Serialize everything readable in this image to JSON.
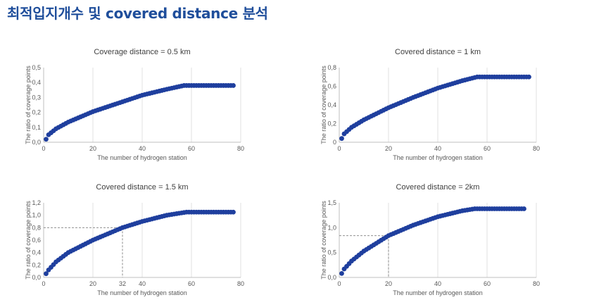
{
  "page": {
    "title": "최적입지개수 및 covered distance 분석"
  },
  "colors": {
    "title": "#1f4e9b",
    "series": "#1f3f9e",
    "axis": "#bfbfbf",
    "grid": "#d9d9d9",
    "guide": "#808080"
  },
  "chart_data": [
    {
      "type": "scatter",
      "title": "Coverage distance = 0.5 km",
      "xlabel": "The number of hydrogen station",
      "ylabel": "The ratio of coverage points",
      "xlim": [
        0,
        80
      ],
      "ylim": [
        0,
        0.5
      ],
      "x_ticks": [
        0,
        20,
        40,
        60,
        80
      ],
      "x_tick_labels": [
        "0",
        "20",
        "40",
        "60",
        "80"
      ],
      "y_ticks": [
        0,
        0.1,
        0.2,
        0.3,
        0.4,
        0.5
      ],
      "y_tick_labels": [
        "0,0",
        "0,1",
        "0,2",
        "0,3",
        "0,4",
        "0,5"
      ],
      "grid": "vertical",
      "x_range": [
        1,
        77
      ],
      "curve": [
        [
          1,
          0.02
        ],
        [
          2,
          0.05
        ],
        [
          5,
          0.09
        ],
        [
          10,
          0.135
        ],
        [
          20,
          0.205
        ],
        [
          30,
          0.26
        ],
        [
          40,
          0.315
        ],
        [
          50,
          0.355
        ],
        [
          57,
          0.38
        ],
        [
          77,
          0.38
        ]
      ],
      "guide": null
    },
    {
      "type": "scatter",
      "title": "Covered distance = 1 km",
      "xlabel": "The number of hydrogen station",
      "ylabel": "The ratio of coverage points",
      "xlim": [
        0,
        80
      ],
      "ylim": [
        0,
        0.8
      ],
      "x_ticks": [
        0,
        20,
        40,
        60,
        80
      ],
      "x_tick_labels": [
        "0",
        "20",
        "40",
        "60",
        "80"
      ],
      "y_ticks": [
        0,
        0.2,
        0.4,
        0.6,
        0.8
      ],
      "y_tick_labels": [
        "0",
        "0,2",
        "0,4",
        "0,6",
        "0,8"
      ],
      "grid": "vertical",
      "x_range": [
        1,
        77
      ],
      "curve": [
        [
          1,
          0.04
        ],
        [
          2,
          0.09
        ],
        [
          5,
          0.16
        ],
        [
          10,
          0.24
        ],
        [
          20,
          0.37
        ],
        [
          30,
          0.48
        ],
        [
          40,
          0.58
        ],
        [
          50,
          0.66
        ],
        [
          56,
          0.7
        ],
        [
          77,
          0.7
        ]
      ],
      "guide": null
    },
    {
      "type": "scatter",
      "title": "Covered distance = 1.5 km",
      "xlabel": "The number of hydrogen station",
      "ylabel": "The ratio of coverage points",
      "xlim": [
        0,
        80
      ],
      "ylim": [
        0,
        1.2
      ],
      "x_ticks": [
        0,
        20,
        40,
        60,
        80
      ],
      "x_tick_labels": [
        "0",
        "20",
        "40",
        "60",
        "80"
      ],
      "y_ticks": [
        0,
        0.2,
        0.4,
        0.6,
        0.8,
        1.0,
        1.2
      ],
      "y_tick_labels": [
        "0,0",
        "0,2",
        "0,4",
        "0,6",
        "0,8",
        "1,0",
        "1,2"
      ],
      "grid": "vertical",
      "x_range": [
        1,
        77
      ],
      "curve": [
        [
          1,
          0.06
        ],
        [
          2,
          0.12
        ],
        [
          5,
          0.25
        ],
        [
          10,
          0.4
        ],
        [
          20,
          0.6
        ],
        [
          32,
          0.8
        ],
        [
          40,
          0.9
        ],
        [
          50,
          1.0
        ],
        [
          58,
          1.05
        ],
        [
          77,
          1.05
        ]
      ],
      "guide": {
        "x": 32,
        "y": 0.8,
        "x_label": "32"
      }
    },
    {
      "type": "scatter",
      "title": "Covered distance = 2km",
      "xlabel": "The number of hydrogen station",
      "ylabel": "The ratio of coverage points",
      "xlim": [
        0,
        80
      ],
      "ylim": [
        0,
        1.5
      ],
      "x_ticks": [
        0,
        20,
        40,
        60,
        80
      ],
      "x_tick_labels": [
        "0",
        "20",
        "40",
        "60",
        "80"
      ],
      "y_ticks": [
        0,
        0.5,
        1.0,
        1.5
      ],
      "y_tick_labels": [
        "0,0",
        "0,5",
        "1,0",
        "1,5"
      ],
      "grid": "vertical",
      "x_range": [
        1,
        75
      ],
      "curve": [
        [
          1,
          0.08
        ],
        [
          2,
          0.17
        ],
        [
          5,
          0.33
        ],
        [
          10,
          0.53
        ],
        [
          20,
          0.84
        ],
        [
          30,
          1.05
        ],
        [
          40,
          1.22
        ],
        [
          50,
          1.34
        ],
        [
          55,
          1.38
        ],
        [
          75,
          1.38
        ]
      ],
      "guide": {
        "x": 20,
        "y": 0.84,
        "x_label": ""
      }
    }
  ]
}
